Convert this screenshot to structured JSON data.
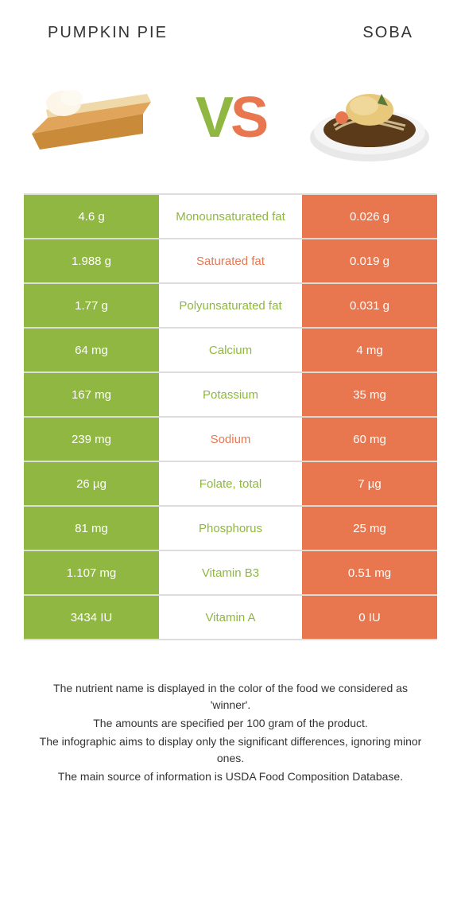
{
  "colors": {
    "left": "#8fb741",
    "right": "#e8764f",
    "border": "#dddddd",
    "bg": "#ffffff",
    "text": "#333333"
  },
  "header": {
    "left_title": "PUMPKIN PIE",
    "right_title": "SOBA"
  },
  "vs": {
    "v": "V",
    "s": "S"
  },
  "rows": [
    {
      "left": "4.6 g",
      "label": "Monounsaturated fat",
      "right": "0.026 g",
      "winner": "left"
    },
    {
      "left": "1.988 g",
      "label": "Saturated fat",
      "right": "0.019 g",
      "winner": "right"
    },
    {
      "left": "1.77 g",
      "label": "Polyunsaturated fat",
      "right": "0.031 g",
      "winner": "left"
    },
    {
      "left": "64 mg",
      "label": "Calcium",
      "right": "4 mg",
      "winner": "left"
    },
    {
      "left": "167 mg",
      "label": "Potassium",
      "right": "35 mg",
      "winner": "left"
    },
    {
      "left": "239 mg",
      "label": "Sodium",
      "right": "60 mg",
      "winner": "right"
    },
    {
      "left": "26 µg",
      "label": "Folate, total",
      "right": "7 µg",
      "winner": "left"
    },
    {
      "left": "81 mg",
      "label": "Phosphorus",
      "right": "25 mg",
      "winner": "left"
    },
    {
      "left": "1.107 mg",
      "label": "Vitamin B3",
      "right": "0.51 mg",
      "winner": "left"
    },
    {
      "left": "3434 IU",
      "label": "Vitamin A",
      "right": "0 IU",
      "winner": "left"
    }
  ],
  "footer": {
    "l1": "The nutrient name is displayed in the color of the food we considered as 'winner'.",
    "l2": "The amounts are specified per 100 gram of the product.",
    "l3": "The infographic aims to display only the significant differences, ignoring minor ones.",
    "l4": "The main source of information is USDA Food Composition Database."
  }
}
